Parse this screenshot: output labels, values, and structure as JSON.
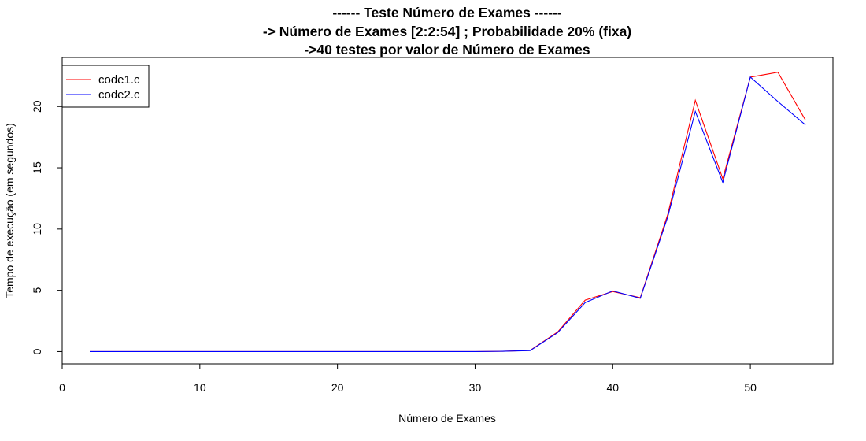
{
  "chart_data": {
    "type": "line",
    "title_lines": [
      "------ Teste Número de Exames ------",
      "-> Número de Exames [2:2:54] ; Probabilidade 20% (fixa)",
      "->40 testes por valor de Número de Exames"
    ],
    "xlabel": "Número de Exames",
    "ylabel": "Tempo de execução (em segundos)",
    "xlim": [
      0,
      56
    ],
    "ylim": [
      -1,
      24
    ],
    "xticks": [
      0,
      10,
      20,
      30,
      40,
      50
    ],
    "yticks": [
      0,
      5,
      10,
      15,
      20
    ],
    "legend_position": "top-left",
    "x": [
      2,
      4,
      6,
      8,
      10,
      12,
      14,
      16,
      18,
      20,
      22,
      24,
      26,
      28,
      30,
      32,
      34,
      36,
      38,
      40,
      42,
      44,
      46,
      48,
      50,
      52,
      54
    ],
    "series": [
      {
        "name": "code1.c",
        "color": "#ff0000",
        "values": [
          0,
          0,
          0,
          0,
          0,
          0,
          0,
          0,
          0,
          0,
          0,
          0,
          0,
          0,
          0,
          0.02,
          0.1,
          1.6,
          4.2,
          4.9,
          4.4,
          11.2,
          20.5,
          14.1,
          22.4,
          22.8,
          18.9
        ]
      },
      {
        "name": "code2.c",
        "color": "#0000ff",
        "values": [
          0,
          0,
          0,
          0,
          0,
          0,
          0,
          0,
          0,
          0,
          0,
          0,
          0,
          0,
          0,
          0.02,
          0.08,
          1.55,
          4.0,
          4.95,
          4.35,
          11.0,
          19.6,
          13.8,
          22.4,
          20.4,
          18.5
        ]
      }
    ]
  }
}
